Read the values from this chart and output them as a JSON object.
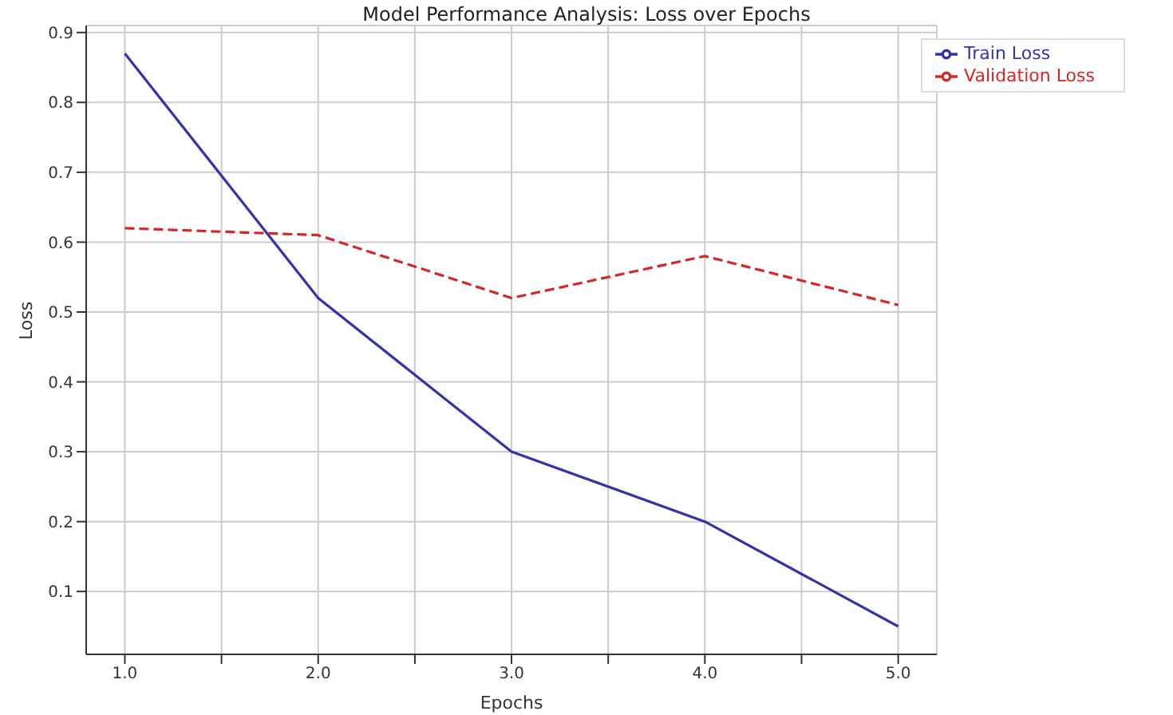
{
  "chart_data": {
    "type": "line",
    "title": "Model Performance Analysis: Loss over Epochs",
    "xlabel": "Epochs",
    "ylabel": "Loss",
    "x": [
      1,
      2,
      3,
      4,
      5
    ],
    "series": [
      {
        "name": "Train Loss",
        "color": "#3333aa",
        "line_style": "solid",
        "values": [
          0.87,
          0.52,
          0.3,
          0.2,
          0.05
        ]
      },
      {
        "name": "Validation Loss",
        "color": "#d62728",
        "line_style": "dashed",
        "values": [
          0.62,
          0.61,
          0.52,
          0.58,
          0.51
        ]
      }
    ],
    "xlim": [
      0.8,
      5.2
    ],
    "xticks": [
      {
        "value": 1,
        "label": "1.0"
      },
      {
        "value": 1.5,
        "label": null
      },
      {
        "value": 2,
        "label": "2.0"
      },
      {
        "value": 2.5,
        "label": null
      },
      {
        "value": 3,
        "label": "3.0"
      },
      {
        "value": 3.5,
        "label": null
      },
      {
        "value": 4,
        "label": "4.0"
      },
      {
        "value": 4.5,
        "label": null
      },
      {
        "value": 5,
        "label": "5.0"
      }
    ],
    "ylim": [
      0.01,
      0.91
    ],
    "yticks": [
      0.1,
      0.2,
      0.3,
      0.4,
      0.5,
      0.6,
      0.7,
      0.8,
      0.9
    ],
    "grid": true,
    "legend": "top right",
    "marker": "none"
  }
}
